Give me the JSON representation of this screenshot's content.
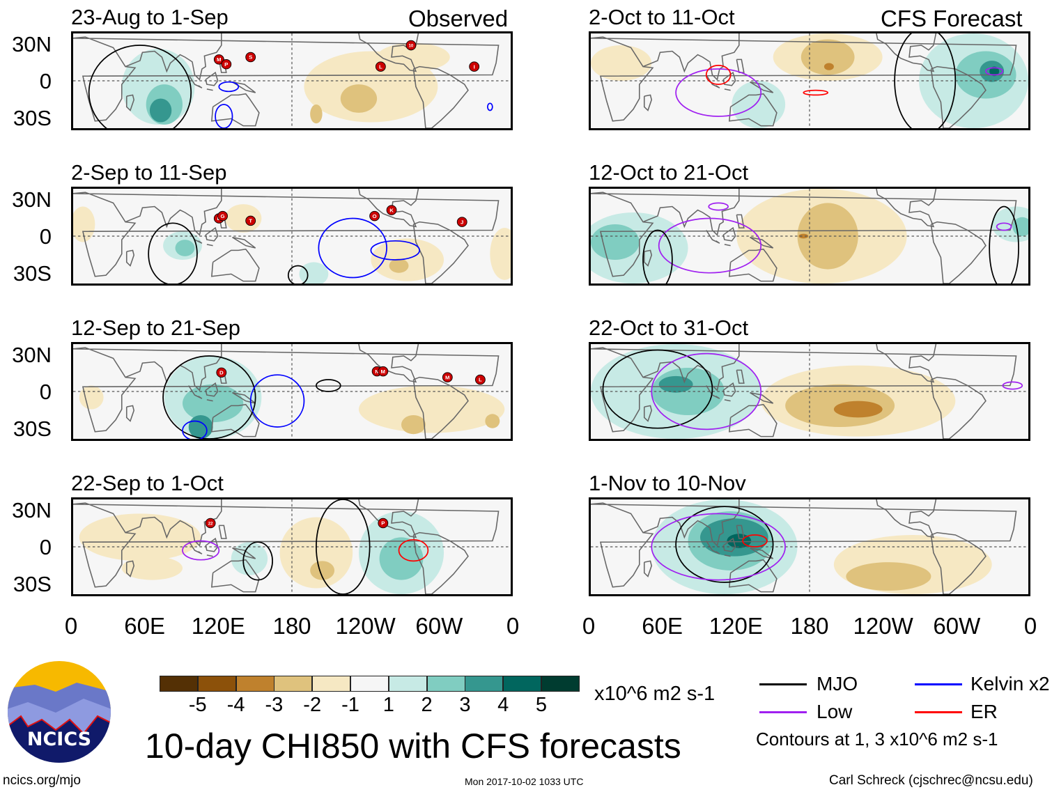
{
  "header": {
    "observed_label": "Observed",
    "forecast_label": "CFS Forecast"
  },
  "axes": {
    "lat_labels": [
      "30N",
      "0",
      "30S"
    ],
    "lon_labels": [
      "0",
      "60E",
      "120E",
      "180",
      "120W",
      "60W",
      "0"
    ]
  },
  "colors": {
    "-5": "#543005",
    "-4": "#8c510a",
    "-3": "#bf812d",
    "-2": "#dfc27d",
    "-1": "#f6e8c3",
    "1": "#c7eae5",
    "2": "#80cdc1",
    "3": "#35978f",
    "4": "#01665e",
    "5": "#003c30",
    "MJO": "#000000",
    "Kelvin": "#0000ff",
    "Low": "#a020f0",
    "ER": "#ff0000"
  },
  "chart_data": {
    "type": "map",
    "title": "10-day CHI850 with CFS forecasts",
    "units": "x10^6 m2 s-1",
    "lon_range": [
      0,
      360
    ],
    "lat_range": [
      -40,
      40
    ],
    "colorbar": {
      "labels": [
        "-5",
        "-4",
        "-3",
        "-2",
        "-1",
        "1",
        "2",
        "3",
        "4",
        "5"
      ],
      "levels": [
        -5,
        -4,
        -3,
        -2,
        -1,
        0,
        1,
        2,
        3,
        4,
        5
      ]
    },
    "panels": [
      {
        "title": "23-Aug to 1-Sep",
        "column": "observed",
        "fields": [
          [
            70,
            -5,
            30,
            32,
            1
          ],
          [
            75,
            -20,
            15,
            17,
            2
          ],
          [
            72,
            -25,
            9,
            10,
            3
          ],
          [
            245,
            -5,
            55,
            30,
            -1
          ],
          [
            235,
            -15,
            15,
            12,
            -2
          ],
          [
            200,
            -28,
            5,
            8,
            -2
          ],
          [
            280,
            20,
            30,
            12,
            -1
          ]
        ],
        "contours": [
          [
            "MJO",
            55,
            -10,
            42,
            40
          ],
          [
            "Kelvin",
            128,
            -5,
            8,
            4
          ],
          [
            "Kelvin",
            124,
            -30,
            7,
            10
          ],
          [
            "Kelvin",
            343,
            -22,
            2,
            3
          ]
        ],
        "storms": [
          [
            "M",
            120,
            18
          ],
          [
            "P",
            126,
            14
          ],
          [
            "S",
            146,
            20
          ],
          [
            "L",
            253,
            12
          ],
          [
            "10",
            278,
            30
          ],
          [
            "I",
            330,
            12
          ]
        ]
      },
      {
        "title": "2-Sep to 11-Sep",
        "column": "observed",
        "fields": [
          [
            90,
            -8,
            16,
            12,
            1
          ],
          [
            92,
            -10,
            8,
            7,
            2
          ],
          [
            140,
            15,
            15,
            12,
            -1
          ],
          [
            275,
            -20,
            30,
            18,
            -1
          ],
          [
            268,
            -25,
            8,
            6,
            -2
          ],
          [
            355,
            -15,
            12,
            22,
            -1
          ],
          [
            8,
            10,
            10,
            15,
            -1
          ],
          [
            198,
            -32,
            12,
            10,
            1
          ]
        ],
        "contours": [
          [
            "MJO",
            82,
            -15,
            20,
            26
          ],
          [
            "Kelvin",
            230,
            -10,
            28,
            25
          ],
          [
            "Kelvin",
            265,
            -12,
            20,
            8
          ],
          [
            "MJO",
            185,
            -33,
            8,
            8
          ]
        ],
        "storms": [
          [
            "D",
            120,
            15
          ],
          [
            "G",
            123,
            17
          ],
          [
            "T",
            146,
            13
          ],
          [
            "O",
            248,
            17
          ],
          [
            "K",
            262,
            22
          ],
          [
            "J",
            320,
            12
          ]
        ]
      },
      {
        "title": "12-Sep to 21-Sep",
        "column": "observed",
        "fields": [
          [
            115,
            -5,
            40,
            35,
            1
          ],
          [
            115,
            -10,
            25,
            16,
            2
          ],
          [
            105,
            -30,
            10,
            10,
            3
          ],
          [
            295,
            -15,
            60,
            20,
            -1
          ],
          [
            280,
            -28,
            10,
            8,
            -2
          ],
          [
            345,
            -25,
            6,
            6,
            -2
          ],
          [
            15,
            -5,
            10,
            10,
            -1
          ]
        ],
        "contours": [
          [
            "MJO",
            112,
            -5,
            38,
            35
          ],
          [
            "Kelvin",
            168,
            -8,
            22,
            22
          ],
          [
            "MJO",
            210,
            5,
            10,
            5
          ],
          [
            "Kelvin",
            100,
            -33,
            10,
            8
          ]
        ],
        "storms": [
          [
            "D",
            122,
            16
          ],
          [
            "N",
            250,
            17
          ],
          [
            "M",
            255,
            17
          ],
          [
            "M",
            308,
            12
          ],
          [
            "L",
            335,
            10
          ]
        ]
      },
      {
        "title": "22-Sep to 1-Oct",
        "column": "observed",
        "fields": [
          [
            55,
            8,
            50,
            20,
            -1
          ],
          [
            65,
            -18,
            25,
            10,
            -1
          ],
          [
            200,
            -5,
            30,
            30,
            -1
          ],
          [
            205,
            -20,
            10,
            8,
            -2
          ],
          [
            145,
            -10,
            15,
            14,
            1
          ],
          [
            270,
            -5,
            35,
            35,
            1
          ],
          [
            270,
            -10,
            18,
            18,
            2
          ]
        ],
        "contours": [
          [
            "Low",
            105,
            -3,
            15,
            8
          ],
          [
            "MJO",
            152,
            -12,
            12,
            16
          ],
          [
            "MJO",
            222,
            0,
            22,
            40
          ],
          [
            "ER",
            280,
            -3,
            12,
            9
          ]
        ],
        "storms": [
          [
            "22",
            113,
            20
          ],
          [
            "P",
            255,
            20
          ]
        ]
      },
      {
        "title": "2-Oct to 11-Oct",
        "column": "forecast",
        "fields": [
          [
            315,
            0,
            45,
            40,
            1
          ],
          [
            325,
            5,
            25,
            20,
            2
          ],
          [
            330,
            8,
            10,
            9,
            3
          ],
          [
            332,
            8,
            4,
            4,
            4
          ],
          [
            195,
            20,
            45,
            20,
            -1
          ],
          [
            195,
            20,
            22,
            15,
            -2
          ],
          [
            196,
            12,
            4,
            3,
            -3
          ],
          [
            25,
            15,
            25,
            15,
            -1
          ],
          [
            138,
            -20,
            22,
            20,
            1
          ]
        ],
        "contours": [
          [
            "Low",
            105,
            -10,
            35,
            20
          ],
          [
            "ER",
            105,
            5,
            10,
            8
          ],
          [
            "ER",
            185,
            -10,
            10,
            2
          ],
          [
            "MJO",
            275,
            0,
            25,
            45
          ],
          [
            "Low",
            332,
            8,
            7,
            3
          ]
        ],
        "storms": []
      },
      {
        "title": "12-Oct to 21-Oct",
        "column": "forecast",
        "fields": [
          [
            35,
            -10,
            45,
            30,
            1
          ],
          [
            20,
            -5,
            20,
            15,
            2
          ],
          [
            350,
            10,
            20,
            15,
            1
          ],
          [
            355,
            8,
            8,
            8,
            2
          ],
          [
            190,
            0,
            70,
            40,
            -1
          ],
          [
            195,
            0,
            25,
            28,
            -2
          ],
          [
            175,
            0,
            4,
            2,
            -3
          ]
        ],
        "contours": [
          [
            "Low",
            98,
            -8,
            42,
            23
          ],
          [
            "MJO",
            55,
            -20,
            12,
            25
          ],
          [
            "MJO",
            340,
            -10,
            12,
            35
          ],
          [
            "Low",
            340,
            8,
            6,
            3
          ],
          [
            "Low",
            105,
            25,
            8,
            3
          ]
        ],
        "storms": []
      },
      {
        "title": "22-Oct to 31-Oct",
        "column": "forecast",
        "fields": [
          [
            70,
            0,
            70,
            40,
            1
          ],
          [
            80,
            0,
            30,
            20,
            2
          ],
          [
            70,
            6,
            14,
            7,
            3
          ],
          [
            220,
            -8,
            80,
            30,
            -1
          ],
          [
            205,
            -12,
            45,
            18,
            -2
          ],
          [
            220,
            -15,
            20,
            7,
            -3
          ]
        ],
        "contours": [
          [
            "MJO",
            55,
            2,
            45,
            33
          ],
          [
            "Low",
            95,
            0,
            45,
            32
          ],
          [
            "Low",
            347,
            5,
            8,
            3
          ]
        ],
        "storms": []
      },
      {
        "title": "1-Nov to 10-Nov",
        "column": "forecast",
        "fields": [
          [
            110,
            0,
            60,
            40,
            1
          ],
          [
            115,
            5,
            35,
            25,
            2
          ],
          [
            118,
            8,
            28,
            16,
            3
          ],
          [
            122,
            5,
            10,
            6,
            4
          ],
          [
            265,
            -15,
            65,
            25,
            -1
          ],
          [
            245,
            -25,
            35,
            12,
            -2
          ],
          [
            275,
            5,
            6,
            3,
            -1
          ]
        ],
        "contours": [
          [
            "MJO",
            110,
            2,
            40,
            32
          ],
          [
            "Low",
            105,
            0,
            55,
            28
          ],
          [
            "ER",
            135,
            5,
            10,
            5
          ]
        ],
        "storms": []
      }
    ]
  },
  "colorbar_units": "x10^6 m2 s-1",
  "legend": {
    "items": [
      {
        "key": "MJO",
        "label": "MJO"
      },
      {
        "key": "Kelvin",
        "label": "Kelvin x2"
      },
      {
        "key": "Low",
        "label": "Low"
      },
      {
        "key": "ER",
        "label": "ER"
      }
    ],
    "note": "Contours at 1, 3 x10^6 m2 s-1"
  },
  "footer": {
    "title": "10-day CHI850 with CFS forecasts",
    "url": "ncics.org/mjo",
    "timestamp": "Mon 2017-10-02 1033 UTC",
    "author": "Carl Schreck (cjschrec@ncsu.edu)"
  },
  "logo": {
    "text": "NCICS"
  }
}
